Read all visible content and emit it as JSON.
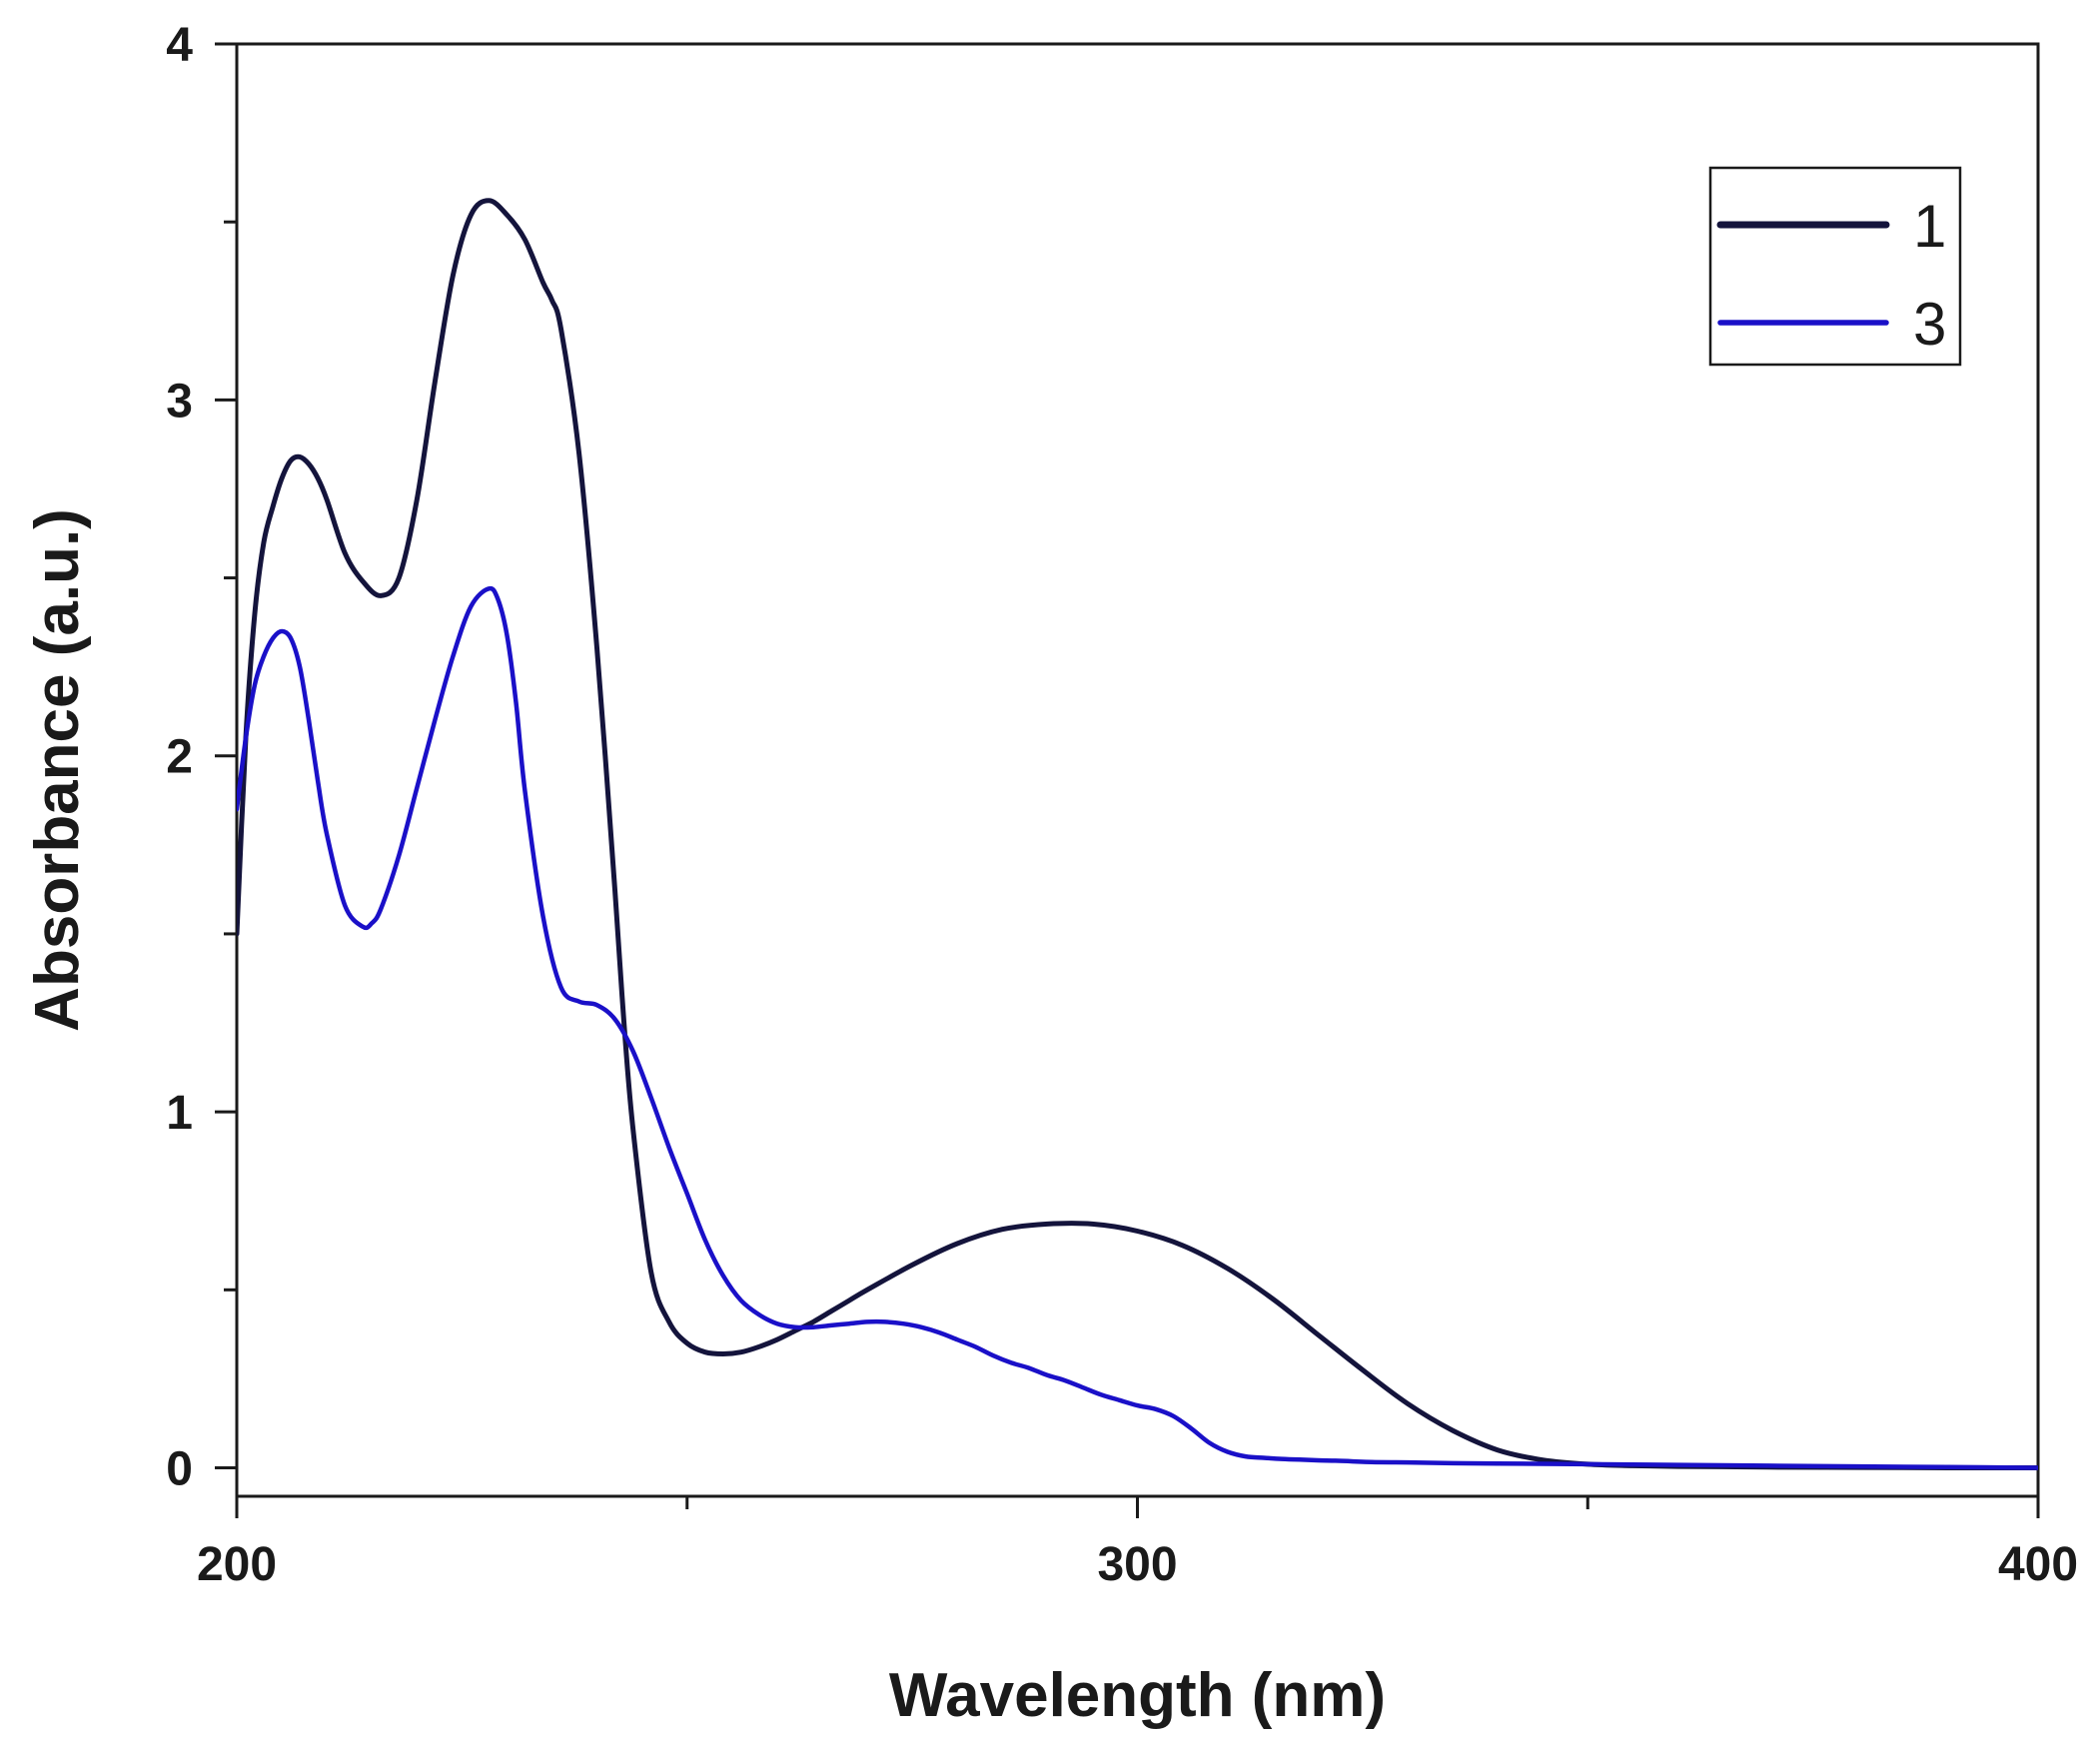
{
  "chart_data": {
    "type": "line",
    "title": "",
    "xlabel": "Wavelength (nm)",
    "ylabel": "Absorbance (a.u.)",
    "xlim": [
      200,
      400
    ],
    "ylim": [
      -0.08,
      4
    ],
    "x_ticks": [
      200,
      300,
      400
    ],
    "x_tick_labels": [
      "200",
      "300",
      "400"
    ],
    "x_minor_ticks": [
      250,
      350
    ],
    "y_ticks": [
      0,
      1,
      2,
      3,
      4
    ],
    "y_tick_labels": [
      "0",
      "1",
      "2",
      "3",
      "4"
    ],
    "y_minor_ticks": [
      0.5,
      1.5,
      2.5,
      3.5
    ],
    "grid": false,
    "legend_position": "top-right",
    "series": [
      {
        "name": "1",
        "color": "#14143c",
        "x": [
          200,
          201,
          202,
          203,
          204,
          205,
          206,
          207,
          208,
          209,
          210,
          212,
          214,
          216,
          218,
          220,
          222,
          224,
          226,
          228,
          230,
          232,
          234,
          235,
          236,
          238,
          240,
          242,
          243,
          244,
          246,
          248,
          250,
          252,
          254,
          256,
          258,
          260,
          262,
          264,
          266,
          268,
          270,
          275,
          280,
          285,
          290,
          295,
          300,
          305,
          310,
          315,
          320,
          325,
          330,
          335,
          340,
          345,
          350,
          355,
          360,
          365,
          370,
          380,
          390,
          400
        ],
        "values": [
          1.5,
          2.05,
          2.4,
          2.6,
          2.7,
          2.78,
          2.83,
          2.84,
          2.82,
          2.78,
          2.72,
          2.57,
          2.49,
          2.45,
          2.5,
          2.72,
          3.05,
          3.35,
          3.52,
          3.56,
          3.52,
          3.45,
          3.33,
          3.28,
          3.2,
          2.85,
          2.3,
          1.62,
          1.25,
          0.95,
          0.55,
          0.41,
          0.35,
          0.325,
          0.32,
          0.325,
          0.34,
          0.36,
          0.385,
          0.41,
          0.44,
          0.47,
          0.5,
          0.57,
          0.63,
          0.67,
          0.685,
          0.685,
          0.665,
          0.625,
          0.56,
          0.475,
          0.375,
          0.275,
          0.18,
          0.105,
          0.05,
          0.022,
          0.01,
          0.006,
          0.004,
          0.003,
          0.002,
          0.001,
          0.0,
          0.0
        ]
      },
      {
        "name": "3",
        "color": "#1a10c8",
        "x": [
          200,
          201,
          202,
          203,
          204,
          205,
          206,
          207,
          208,
          209,
          210,
          212,
          214,
          215,
          216,
          218,
          220,
          222,
          224,
          226,
          228,
          229,
          230,
          231,
          232,
          234,
          236,
          238,
          240,
          242,
          244,
          246,
          248,
          250,
          252,
          254,
          256,
          258,
          260,
          262,
          264,
          266,
          268,
          270,
          272,
          274,
          276,
          278,
          280,
          282,
          284,
          286,
          288,
          290,
          292,
          294,
          296,
          298,
          300,
          302,
          304,
          306,
          308,
          310,
          312,
          314,
          316,
          318,
          320,
          322,
          324,
          326,
          330,
          335,
          340,
          350,
          360,
          370,
          380,
          390,
          400
        ],
        "values": [
          1.85,
          2.05,
          2.2,
          2.28,
          2.33,
          2.35,
          2.33,
          2.25,
          2.1,
          1.93,
          1.78,
          1.58,
          1.52,
          1.53,
          1.57,
          1.72,
          1.91,
          2.1,
          2.28,
          2.42,
          2.47,
          2.44,
          2.34,
          2.15,
          1.9,
          1.55,
          1.35,
          1.31,
          1.3,
          1.26,
          1.17,
          1.04,
          0.9,
          0.77,
          0.64,
          0.54,
          0.47,
          0.43,
          0.405,
          0.395,
          0.395,
          0.4,
          0.405,
          0.41,
          0.41,
          0.405,
          0.395,
          0.38,
          0.36,
          0.34,
          0.315,
          0.295,
          0.28,
          0.26,
          0.245,
          0.225,
          0.205,
          0.19,
          0.175,
          0.165,
          0.145,
          0.11,
          0.07,
          0.045,
          0.032,
          0.028,
          0.025,
          0.023,
          0.021,
          0.02,
          0.018,
          0.016,
          0.015,
          0.013,
          0.012,
          0.01,
          0.008,
          0.006,
          0.004,
          0.002,
          0.0
        ]
      }
    ]
  }
}
